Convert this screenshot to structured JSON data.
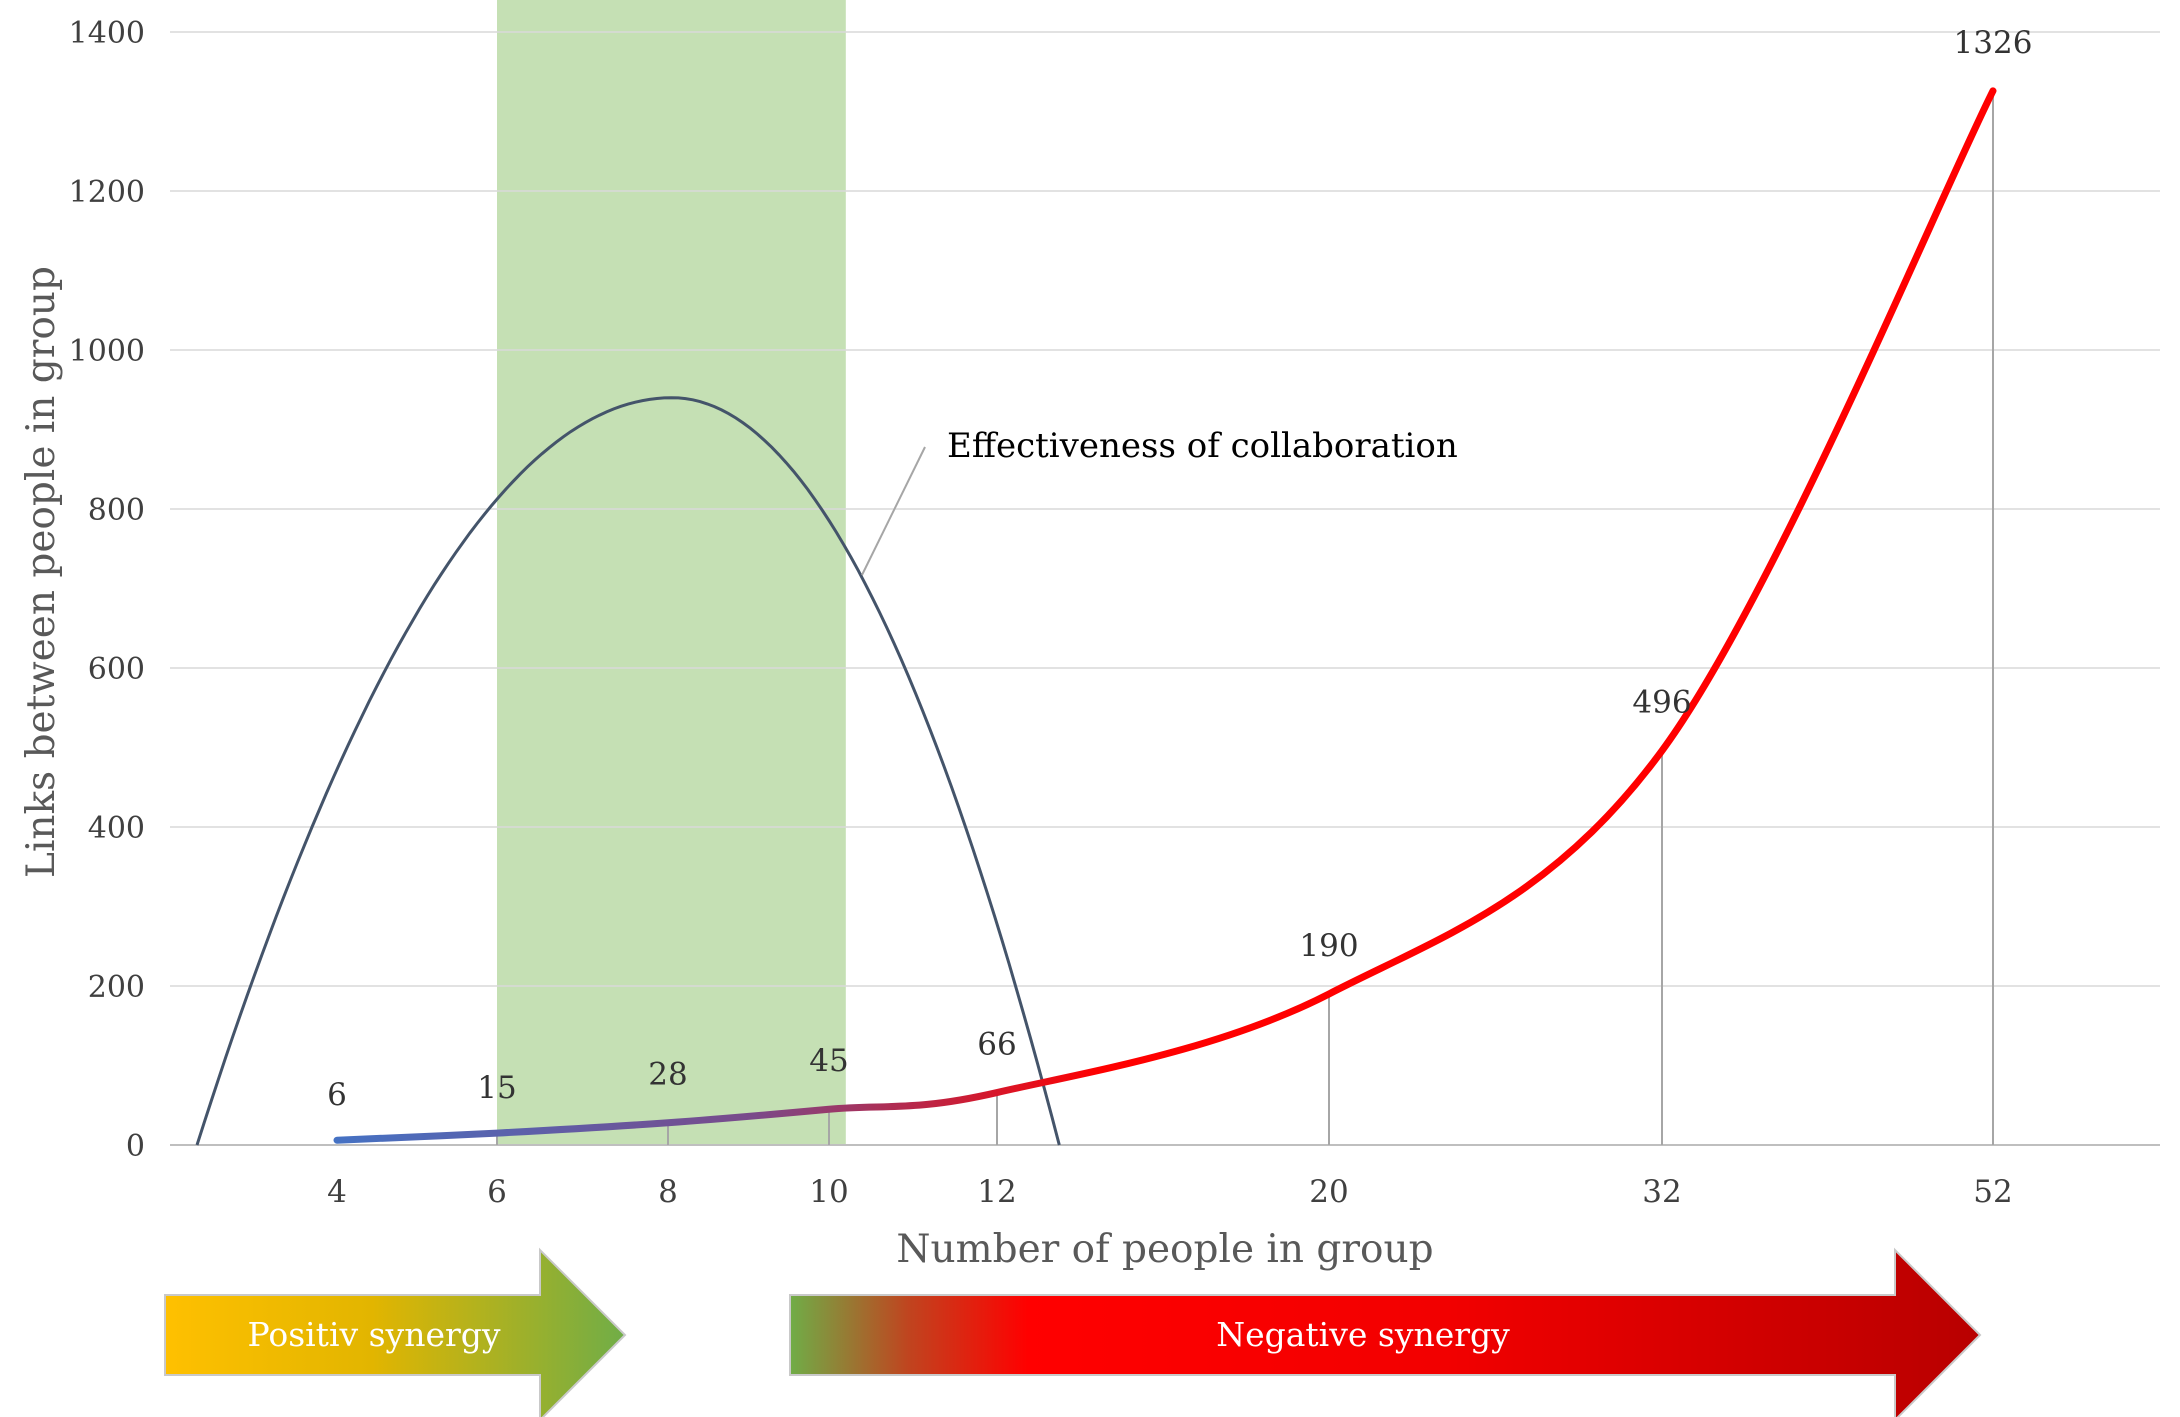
{
  "chart_data": {
    "type": "line",
    "xlabel": "Number of people in group",
    "ylabel": "Links between people in group",
    "ylim": [
      0,
      1400
    ],
    "yticks": [
      "0",
      "200",
      "400",
      "600",
      "800",
      "1000",
      "1200",
      "1400"
    ],
    "grid": true,
    "categories": [
      "4",
      "6",
      "8",
      "10",
      "12",
      "20",
      "32",
      "52"
    ],
    "series": [
      {
        "values": [
          6,
          15,
          28,
          45,
          66,
          190,
          496,
          1326
        ],
        "labels": [
          "6",
          "15",
          "28",
          "45",
          "66",
          "190",
          "496",
          "1326"
        ],
        "color_start": "#4472C4",
        "color_end": "#FF0000"
      },
      {
        "name": "Effectiveness of collaboration",
        "shape": "parabola",
        "x": [
          3,
          8.05,
          13.5
        ],
        "y": [
          0,
          940,
          0
        ],
        "color": "#44546A"
      }
    ],
    "highlight_band": {
      "x_from": 6,
      "x_to": 10.2,
      "color": "#C5E0B4"
    },
    "annotations": {
      "effectiveness": "Effectiveness of collaboration"
    }
  },
  "arrows": {
    "positive": {
      "label": "Positiv synergy",
      "colors": [
        "#FFC000",
        "#70AD47"
      ]
    },
    "negative": {
      "label": "Negative synergy",
      "colors": [
        "#70AD47",
        "#FF0000",
        "#C00000"
      ]
    }
  }
}
